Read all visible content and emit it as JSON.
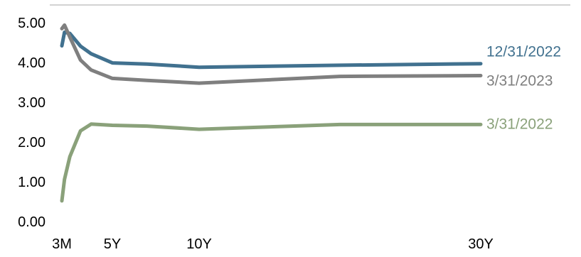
{
  "chart_data": {
    "type": "line",
    "title": "",
    "xlabel": "",
    "ylabel": "",
    "ylim": [
      0,
      5
    ],
    "y_ticks": [
      "0.00",
      "1.00",
      "2.00",
      "3.00",
      "4.00",
      "5.00"
    ],
    "x_ticks": [
      {
        "label": "3M",
        "value": 0.25
      },
      {
        "label": "5Y",
        "value": 5
      },
      {
        "label": "10Y",
        "value": 10
      },
      {
        "label": "30Y",
        "value": 30
      }
    ],
    "grid": false,
    "legend": "inline-right",
    "series": [
      {
        "name": "12/31/2022",
        "color": "#41718f",
        "x": [
          0.25,
          0.5,
          1,
          2,
          3,
          5,
          7,
          10,
          20,
          30
        ],
        "values": [
          4.42,
          4.76,
          4.73,
          4.41,
          4.22,
          3.99,
          3.96,
          3.88,
          3.93,
          3.97
        ]
      },
      {
        "name": "3/31/2023",
        "color": "#7f7f7f",
        "x": [
          0.25,
          0.5,
          1,
          2,
          3,
          5,
          7,
          10,
          20,
          30
        ],
        "values": [
          4.85,
          4.94,
          4.64,
          4.06,
          3.81,
          3.6,
          3.55,
          3.48,
          3.65,
          3.67
        ]
      },
      {
        "name": "3/31/2022",
        "color": "#8aa17a",
        "x": [
          0.25,
          0.5,
          1,
          2,
          3,
          5,
          7,
          10,
          20,
          30
        ],
        "values": [
          0.52,
          1.06,
          1.63,
          2.28,
          2.45,
          2.42,
          2.4,
          2.32,
          2.44,
          2.44
        ]
      }
    ]
  }
}
